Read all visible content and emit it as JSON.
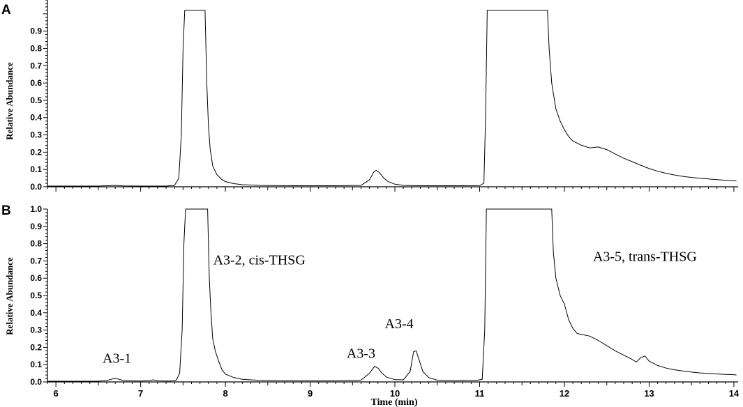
{
  "chart_data": [
    {
      "type": "line",
      "panel": "A",
      "xlabel": "",
      "ylabel": "Relative Abundance",
      "xlim": [
        5.9,
        14.05
      ],
      "ylim": [
        0,
        1.0
      ],
      "y_ticks": [
        "0.0",
        "0.1",
        "0.2",
        "0.3",
        "0.4",
        "0.5",
        "0.6",
        "0.7",
        "0.8",
        "0.9"
      ],
      "annotations": [],
      "series": [
        {
          "color": "#000000",
          "points": [
            [
              5.9,
              0.004
            ],
            [
              6.5,
              0.004
            ],
            [
              6.6,
              0.006
            ],
            [
              6.7,
              0.008
            ],
            [
              6.8,
              0.005
            ],
            [
              7.0,
              0.004
            ],
            [
              7.3,
              0.004
            ],
            [
              7.4,
              0.008
            ],
            [
              7.45,
              0.05
            ],
            [
              7.48,
              0.3
            ],
            [
              7.5,
              0.8
            ],
            [
              7.52,
              1.02
            ],
            [
              7.76,
              1.02
            ],
            [
              7.78,
              0.6
            ],
            [
              7.8,
              0.35
            ],
            [
              7.82,
              0.22
            ],
            [
              7.85,
              0.12
            ],
            [
              7.9,
              0.07
            ],
            [
              7.95,
              0.045
            ],
            [
              8.0,
              0.03
            ],
            [
              8.1,
              0.018
            ],
            [
              8.2,
              0.012
            ],
            [
              8.4,
              0.008
            ],
            [
              8.8,
              0.006
            ],
            [
              9.3,
              0.006
            ],
            [
              9.6,
              0.008
            ],
            [
              9.7,
              0.04
            ],
            [
              9.75,
              0.085
            ],
            [
              9.78,
              0.095
            ],
            [
              9.82,
              0.08
            ],
            [
              9.87,
              0.05
            ],
            [
              9.92,
              0.03
            ],
            [
              10.0,
              0.015
            ],
            [
              10.1,
              0.008
            ],
            [
              10.3,
              0.006
            ],
            [
              10.7,
              0.006
            ],
            [
              11.0,
              0.007
            ],
            [
              11.05,
              0.02
            ],
            [
              11.07,
              0.4
            ],
            [
              11.09,
              1.02
            ],
            [
              11.8,
              1.02
            ],
            [
              11.82,
              0.8
            ],
            [
              11.85,
              0.6
            ],
            [
              11.9,
              0.45
            ],
            [
              11.95,
              0.38
            ],
            [
              12.0,
              0.33
            ],
            [
              12.05,
              0.29
            ],
            [
              12.1,
              0.265
            ],
            [
              12.2,
              0.24
            ],
            [
              12.3,
              0.225
            ],
            [
              12.4,
              0.23
            ],
            [
              12.5,
              0.215
            ],
            [
              12.6,
              0.19
            ],
            [
              12.7,
              0.165
            ],
            [
              12.8,
              0.145
            ],
            [
              12.9,
              0.125
            ],
            [
              13.0,
              0.105
            ],
            [
              13.1,
              0.09
            ],
            [
              13.2,
              0.078
            ],
            [
              13.3,
              0.068
            ],
            [
              13.4,
              0.06
            ],
            [
              13.5,
              0.054
            ],
            [
              13.6,
              0.049
            ],
            [
              13.7,
              0.045
            ],
            [
              13.8,
              0.041
            ],
            [
              13.9,
              0.038
            ],
            [
              14.0,
              0.035
            ],
            [
              14.03,
              0.034
            ]
          ]
        }
      ]
    },
    {
      "type": "line",
      "panel": "B",
      "xlabel": "Time (min)",
      "ylabel": "Relative Abundance",
      "xlim": [
        5.9,
        14.05
      ],
      "ylim": [
        0,
        1.0
      ],
      "y_ticks": [
        "0.0",
        "0.1",
        "0.2",
        "0.3",
        "0.4",
        "0.5",
        "0.6",
        "0.7",
        "0.8",
        "0.9",
        "1.0"
      ],
      "x_ticks": [
        "6",
        "7",
        "8",
        "9",
        "10",
        "11",
        "12",
        "13",
        "14"
      ],
      "annotations": [
        {
          "text": "A3-1",
          "x": 6.72,
          "y": 0.11
        },
        {
          "text": "A3-2, cis-THSG",
          "x": 8.4,
          "y": 0.68
        },
        {
          "text": "A3-3",
          "x": 9.6,
          "y": 0.14
        },
        {
          "text": "A3-4",
          "x": 10.05,
          "y": 0.31
        },
        {
          "text": "A3-5, trans-THSG",
          "x": 12.95,
          "y": 0.7
        }
      ],
      "series": [
        {
          "color": "#000000",
          "points": [
            [
              5.9,
              0.004
            ],
            [
              6.5,
              0.004
            ],
            [
              6.6,
              0.008
            ],
            [
              6.65,
              0.015
            ],
            [
              6.7,
              0.02
            ],
            [
              6.75,
              0.015
            ],
            [
              6.8,
              0.007
            ],
            [
              7.0,
              0.005
            ],
            [
              7.1,
              0.008
            ],
            [
              7.15,
              0.012
            ],
            [
              7.2,
              0.006
            ],
            [
              7.35,
              0.005
            ],
            [
              7.42,
              0.01
            ],
            [
              7.46,
              0.05
            ],
            [
              7.49,
              0.3
            ],
            [
              7.51,
              0.8
            ],
            [
              7.53,
              1.02
            ],
            [
              7.79,
              1.02
            ],
            [
              7.81,
              0.6
            ],
            [
              7.83,
              0.4
            ],
            [
              7.85,
              0.25
            ],
            [
              7.88,
              0.18
            ],
            [
              7.92,
              0.12
            ],
            [
              7.96,
              0.07
            ],
            [
              8.0,
              0.045
            ],
            [
              8.1,
              0.025
            ],
            [
              8.2,
              0.015
            ],
            [
              8.4,
              0.009
            ],
            [
              8.8,
              0.006
            ],
            [
              9.3,
              0.006
            ],
            [
              9.6,
              0.01
            ],
            [
              9.7,
              0.05
            ],
            [
              9.76,
              0.09
            ],
            [
              9.8,
              0.08
            ],
            [
              9.85,
              0.05
            ],
            [
              9.9,
              0.028
            ],
            [
              10.0,
              0.013
            ],
            [
              10.1,
              0.012
            ],
            [
              10.18,
              0.06
            ],
            [
              10.22,
              0.175
            ],
            [
              10.25,
              0.18
            ],
            [
              10.29,
              0.12
            ],
            [
              10.33,
              0.06
            ],
            [
              10.4,
              0.025
            ],
            [
              10.5,
              0.01
            ],
            [
              10.7,
              0.006
            ],
            [
              10.8,
              0.009
            ],
            [
              10.95,
              0.008
            ],
            [
              11.03,
              0.015
            ],
            [
              11.06,
              0.3
            ],
            [
              11.08,
              1.02
            ],
            [
              11.85,
              1.02
            ],
            [
              11.87,
              0.75
            ],
            [
              11.9,
              0.6
            ],
            [
              11.95,
              0.5
            ],
            [
              12.0,
              0.45
            ],
            [
              12.05,
              0.36
            ],
            [
              12.1,
              0.31
            ],
            [
              12.15,
              0.28
            ],
            [
              12.2,
              0.275
            ],
            [
              12.25,
              0.27
            ],
            [
              12.3,
              0.265
            ],
            [
              12.4,
              0.24
            ],
            [
              12.5,
              0.21
            ],
            [
              12.6,
              0.18
            ],
            [
              12.7,
              0.155
            ],
            [
              12.8,
              0.13
            ],
            [
              12.85,
              0.115
            ],
            [
              12.9,
              0.14
            ],
            [
              12.95,
              0.15
            ],
            [
              13.0,
              0.12
            ],
            [
              13.1,
              0.095
            ],
            [
              13.2,
              0.08
            ],
            [
              13.3,
              0.07
            ],
            [
              13.4,
              0.063
            ],
            [
              13.5,
              0.057
            ],
            [
              13.6,
              0.052
            ],
            [
              13.7,
              0.049
            ],
            [
              13.8,
              0.046
            ],
            [
              13.9,
              0.043
            ],
            [
              14.0,
              0.042
            ],
            [
              14.03,
              0.04
            ]
          ]
        }
      ]
    }
  ]
}
